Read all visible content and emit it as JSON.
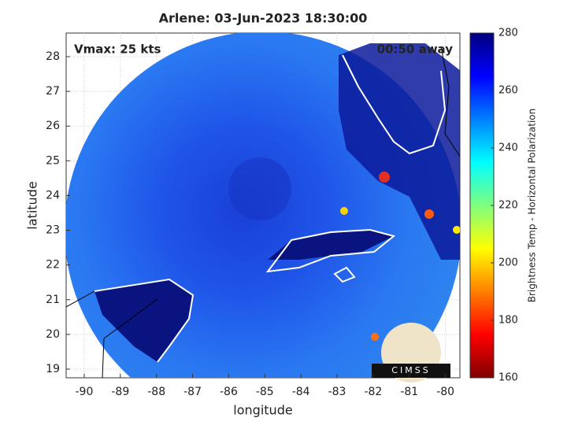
{
  "chart_data": {
    "type": "image",
    "title": "Arlene: 03-Jun-2023 18:30:00",
    "xlabel": "longitude",
    "ylabel": "latitude",
    "annotations": [
      "Vmax: 25 kts",
      "00:50 away"
    ],
    "logo": "CIMSS",
    "xlim": [
      -90.5,
      -79.6
    ],
    "ylim": [
      18.75,
      28.68
    ],
    "xticks": [
      -90,
      -89,
      -88,
      -87,
      -86,
      -85,
      -84,
      -83,
      -82,
      -81,
      -80
    ],
    "yticks": [
      19,
      20,
      21,
      22,
      23,
      24,
      25,
      26,
      27,
      28
    ],
    "grid": true,
    "colorbar": {
      "label": "Brightness Temp - Horizontal Polarization",
      "clim": [
        160,
        280
      ],
      "ticks": [
        160,
        180,
        200,
        220,
        240,
        260,
        280
      ],
      "colormap": [
        "#7f0000",
        "#ff0000",
        "#ff7f00",
        "#ffff00",
        "#7fff7f",
        "#00ffff",
        "#007fff",
        "#0000ff",
        "#00007f"
      ]
    }
  }
}
